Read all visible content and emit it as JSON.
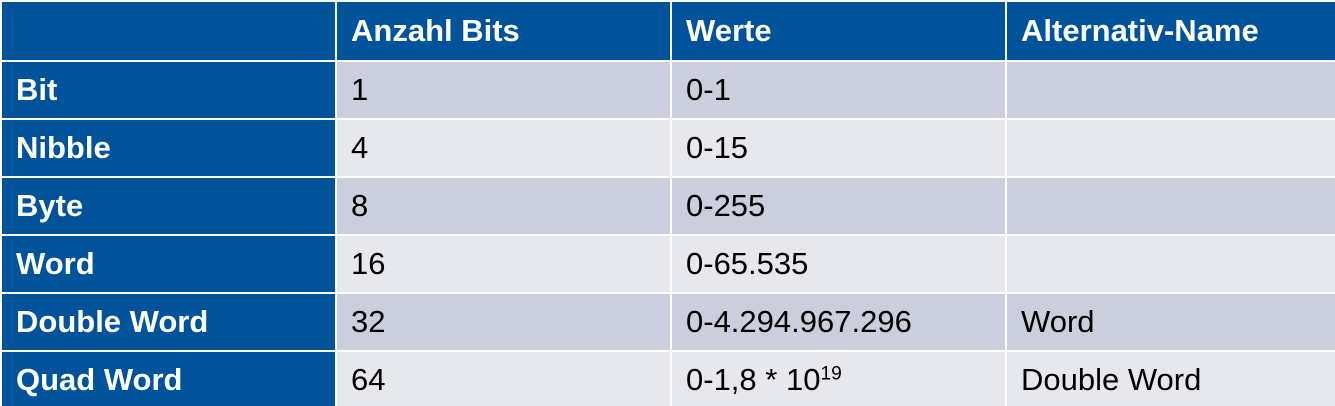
{
  "table": {
    "headers": [
      "",
      "Anzahl Bits",
      "Werte",
      "Alternativ-Name"
    ],
    "rows": [
      {
        "label": "Bit",
        "bits": "1",
        "values": "0-1",
        "alt": ""
      },
      {
        "label": "Nibble",
        "bits": "4",
        "values": "0-15",
        "alt": ""
      },
      {
        "label": "Byte",
        "bits": "8",
        "values": "0-255",
        "alt": ""
      },
      {
        "label": "Word",
        "bits": "16",
        "values": "0-65.535",
        "alt": ""
      },
      {
        "label": "Double Word",
        "bits": "32",
        "values": "0-4.294.967.296",
        "alt": "Word"
      },
      {
        "label": "Quad Word",
        "bits": "64",
        "values": "0-1,8 * 10",
        "values_exponent": "19",
        "alt": "Double Word"
      }
    ]
  },
  "colors": {
    "header_bg": "#00539b",
    "header_text": "#ffffff",
    "row_odd_bg": "#cbcfdd",
    "row_even_bg": "#e7e8ee"
  }
}
